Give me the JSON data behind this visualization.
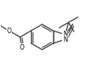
{
  "bg_color": "#ffffff",
  "line_color": "#444444",
  "bond_width": 1.0,
  "figsize": [
    1.2,
    0.78
  ],
  "dpi": 100,
  "font_size": 5.5
}
